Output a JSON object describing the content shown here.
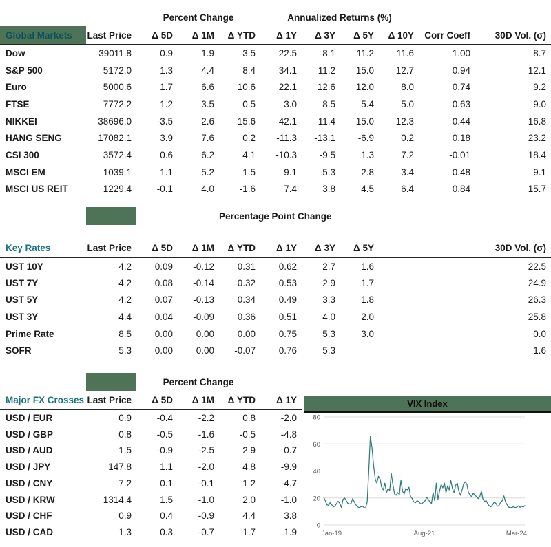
{
  "colors": {
    "accent_green": "#4e7356",
    "heading_teal": "#17727f",
    "chart_line": "#2e7b78"
  },
  "global_markets": {
    "label": "Global Markets",
    "group_percent_change": "Percent Change",
    "group_annualized": "Annualized Returns (%)",
    "columns": [
      "Last Price",
      "Δ 5D",
      "Δ 1M",
      "Δ YTD",
      "Δ 1Y",
      "Δ 3Y",
      "Δ 5Y",
      "Δ 10Y",
      "Corr Coeff",
      "30D Vol. (σ)"
    ],
    "rows": [
      {
        "label": "Dow",
        "values": [
          "39011.8",
          "0.9",
          "1.9",
          "3.5",
          "22.5",
          "8.1",
          "11.2",
          "11.6",
          "1.00",
          "8.7"
        ]
      },
      {
        "label": "S&P 500",
        "values": [
          "5172.0",
          "1.3",
          "4.4",
          "8.4",
          "34.1",
          "11.2",
          "15.0",
          "12.7",
          "0.94",
          "12.1"
        ]
      },
      {
        "label": "Euro",
        "values": [
          "5000.6",
          "1.7",
          "6.6",
          "10.6",
          "22.1",
          "12.6",
          "12.0",
          "8.0",
          "0.74",
          "9.2"
        ]
      },
      {
        "label": "FTSE",
        "values": [
          "7772.2",
          "1.2",
          "3.5",
          "0.5",
          "3.0",
          "8.5",
          "5.4",
          "5.0",
          "0.63",
          "9.0"
        ]
      },
      {
        "label": "NIKKEI",
        "values": [
          "38696.0",
          "-3.5",
          "2.6",
          "15.6",
          "42.1",
          "11.4",
          "15.0",
          "12.3",
          "0.44",
          "16.8"
        ]
      },
      {
        "label": "HANG SENG",
        "values": [
          "17082.1",
          "3.9",
          "7.6",
          "0.2",
          "-11.3",
          "-13.1",
          "-6.9",
          "0.2",
          "0.18",
          "23.2"
        ]
      },
      {
        "label": "CSI 300",
        "values": [
          "3572.4",
          "0.6",
          "6.2",
          "4.1",
          "-10.3",
          "-9.5",
          "1.3",
          "7.2",
          "-0.01",
          "18.4"
        ]
      },
      {
        "label": "MSCI EM",
        "values": [
          "1039.1",
          "1.1",
          "5.2",
          "1.5",
          "9.1",
          "-5.3",
          "2.8",
          "3.4",
          "0.48",
          "9.1"
        ]
      },
      {
        "label": "MSCI US REIT",
        "values": [
          "1229.4",
          "-0.1",
          "4.0",
          "-1.6",
          "7.4",
          "3.8",
          "4.5",
          "6.4",
          "0.84",
          "15.7"
        ]
      }
    ]
  },
  "key_rates": {
    "label": "Key Rates",
    "group": "Percentage Point Change",
    "columns": [
      "Last Price",
      "Δ 5D",
      "Δ 1M",
      "Δ YTD",
      "Δ 1Y",
      "Δ 3Y",
      "Δ 5Y",
      "30D Vol. (σ)"
    ],
    "rows": [
      {
        "label": "UST 10Y",
        "values": [
          "4.2",
          "0.09",
          "-0.12",
          "0.31",
          "0.62",
          "2.7",
          "1.6",
          "22.5"
        ]
      },
      {
        "label": "UST 7Y",
        "values": [
          "4.2",
          "0.08",
          "-0.14",
          "0.32",
          "0.53",
          "2.9",
          "1.7",
          "24.9"
        ]
      },
      {
        "label": "UST 5Y",
        "values": [
          "4.2",
          "0.07",
          "-0.13",
          "0.34",
          "0.49",
          "3.3",
          "1.8",
          "26.3"
        ]
      },
      {
        "label": "UST 3Y",
        "values": [
          "4.4",
          "0.04",
          "-0.09",
          "0.36",
          "0.51",
          "4.0",
          "2.0",
          "25.8"
        ]
      },
      {
        "label": "Prime Rate",
        "values": [
          "8.5",
          "0.00",
          "0.00",
          "0.00",
          "0.75",
          "5.3",
          "3.0",
          "0.0"
        ]
      },
      {
        "label": "SOFR",
        "values": [
          "5.3",
          "0.00",
          "0.00",
          "-0.07",
          "0.76",
          "5.3",
          "",
          "1.6"
        ]
      }
    ]
  },
  "fx": {
    "label": "Major FX Crosses",
    "group": "Percent Change",
    "columns": [
      "Last Price",
      "Δ 5D",
      "Δ 1M",
      "Δ YTD",
      "Δ 1Y"
    ],
    "rows": [
      {
        "label": "USD / EUR",
        "values": [
          "0.9",
          "-0.4",
          "-2.2",
          "0.8",
          "-2.0"
        ]
      },
      {
        "label": "USD / GBP",
        "values": [
          "0.8",
          "-0.5",
          "-1.6",
          "-0.5",
          "-4.8"
        ]
      },
      {
        "label": "USD / AUD",
        "values": [
          "1.5",
          "-0.9",
          "-2.5",
          "2.9",
          "0.7"
        ]
      },
      {
        "label": "USD / JPY",
        "values": [
          "147.8",
          "1.1",
          "-2.0",
          "4.8",
          "-9.9"
        ]
      },
      {
        "label": "USD / CNY",
        "values": [
          "7.2",
          "0.1",
          "-0.1",
          "1.2",
          "-4.7"
        ]
      },
      {
        "label": "USD / KRW",
        "values": [
          "1314.4",
          "1.5",
          "-1.0",
          "2.0",
          "-1.0"
        ]
      },
      {
        "label": "USD / CHF",
        "values": [
          "0.9",
          "0.4",
          "-0.9",
          "4.4",
          "3.8"
        ]
      },
      {
        "label": "USD / CAD",
        "values": [
          "1.3",
          "0.3",
          "-0.7",
          "1.7",
          "1.9"
        ]
      }
    ]
  },
  "chart_data": {
    "type": "line",
    "title": "VIX Index",
    "x_tick_labels": [
      "Jan-19",
      "Aug-21",
      "Mar-24"
    ],
    "y_ticks": [
      0,
      20,
      40,
      60,
      80
    ],
    "ylim": [
      0,
      80
    ],
    "grid": true,
    "legend": "none",
    "line_color": "#2e7b78",
    "values": [
      20.5,
      18,
      15,
      14.5,
      16.5,
      15,
      13.5,
      14,
      16,
      17.5,
      16,
      13,
      19,
      20,
      18,
      16,
      15.5,
      16,
      19.5,
      17,
      15,
      13.5,
      12.8,
      13.5,
      14,
      13,
      12.5,
      17,
      40,
      66,
      57,
      44,
      34,
      31,
      36,
      34,
      28,
      26,
      31,
      24,
      27,
      25.5,
      38,
      30,
      23,
      22,
      24,
      22.5,
      33,
      25,
      23,
      27,
      26,
      28,
      21,
      19.5,
      17,
      16.5,
      18,
      17.5,
      16,
      15.5,
      17,
      18,
      20.5,
      19,
      17,
      16,
      24,
      18,
      31,
      19,
      25,
      30,
      27.5,
      31,
      24,
      29,
      26,
      33,
      27,
      24,
      29.5,
      31,
      25,
      22,
      26,
      30.5,
      32,
      30,
      24,
      22,
      21,
      23.5,
      22,
      21,
      19.5,
      21,
      25,
      19,
      17.5,
      18,
      15.5,
      14,
      13.5,
      15,
      17,
      16,
      13.8,
      14.5,
      17,
      18,
      21.5,
      17,
      15,
      13.2,
      12.8,
      13,
      13.5,
      12.9,
      13.2,
      14.2,
      13.1,
      13.8,
      13.3,
      14.3
    ]
  }
}
